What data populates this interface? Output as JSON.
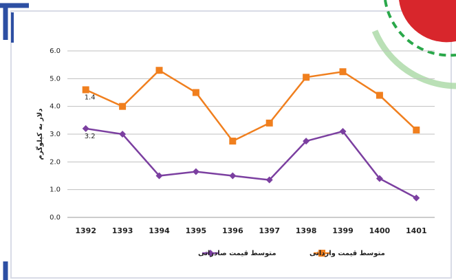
{
  "chart_data": {
    "type": "line",
    "y_label": "دلار به کیلوگرم",
    "categories": [
      "1392",
      "1393",
      "1394",
      "1395",
      "1396",
      "1397",
      "1398",
      "1399",
      "1400",
      "1401"
    ],
    "series": [
      {
        "name": "متوسط قیمت صادراتی",
        "color": "#7b3fa0",
        "marker": "diamond",
        "values": [
          3.2,
          3.0,
          1.5,
          1.65,
          1.5,
          1.35,
          2.75,
          3.1,
          1.4,
          0.7
        ],
        "value_labels": [
          "3.2",
          null,
          null,
          null,
          null,
          null,
          null,
          null,
          null,
          null
        ]
      },
      {
        "name": "متوسط قیمت وارداتی",
        "color": "#f07f1e",
        "marker": "square",
        "values": [
          4.6,
          4.0,
          5.3,
          4.5,
          2.75,
          3.4,
          5.05,
          5.25,
          4.4,
          3.15
        ]
      }
    ],
    "annotations": [
      {
        "text": "1.4",
        "category": 0,
        "series": 1
      }
    ],
    "ylim": [
      0,
      6
    ],
    "yticks": [
      {
        "value": 0,
        "label": "0.0"
      },
      {
        "value": 1,
        "label": "1.0"
      },
      {
        "value": 2,
        "label": "2.0"
      },
      {
        "value": 3,
        "label": "3.0"
      },
      {
        "value": 4,
        "label": "4.0"
      },
      {
        "value": 5,
        "label": "5.0"
      },
      {
        "value": 6,
        "label": "6.0"
      }
    ],
    "grid": true,
    "legend": "bottom"
  }
}
